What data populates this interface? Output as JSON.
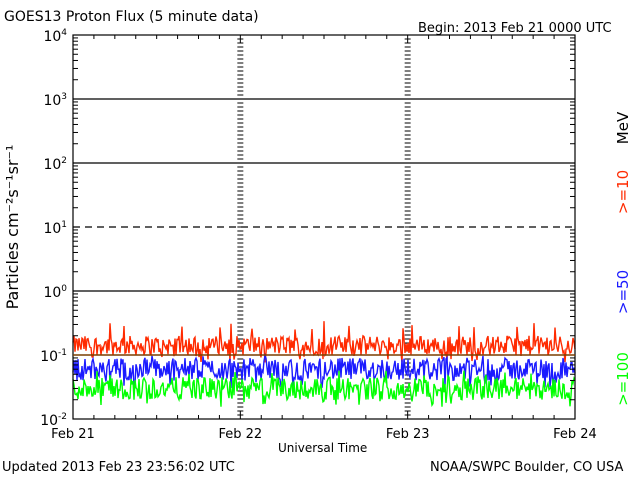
{
  "header": {
    "title": "GOES13 Proton Flux (5 minute data)",
    "begin": "Begin: 2013 Feb 21 0000 UTC"
  },
  "footer": {
    "updated": "Updated 2013 Feb 23 23:56:02 UTC",
    "credit": "NOAA/SWPC Boulder, CO USA"
  },
  "chart_data": {
    "type": "line",
    "title": "GOES13 Proton Flux (5 minute data)",
    "xlabel": "Universal Time",
    "ylabel": "Particles cm⁻²s⁻¹sr⁻¹",
    "y_scale": "log",
    "ylim": [
      0.01,
      10000
    ],
    "y_ticks": [
      {
        "value": 0.01,
        "base": "10",
        "exp": "-2"
      },
      {
        "value": 0.1,
        "base": "10",
        "exp": "-1"
      },
      {
        "value": 1,
        "base": "10",
        "exp": "0"
      },
      {
        "value": 10,
        "base": "10",
        "exp": "1"
      },
      {
        "value": 100,
        "base": "10",
        "exp": "2"
      },
      {
        "value": 1000,
        "base": "10",
        "exp": "3"
      },
      {
        "value": 10000,
        "base": "10",
        "exp": "4"
      }
    ],
    "x_ticks": [
      "Feb 21",
      "Feb 22",
      "Feb 23",
      "Feb 24"
    ],
    "xlim": [
      "2013-02-21 00:00",
      "2013-02-24 00:00"
    ],
    "threshold_lines": [
      {
        "value": 10,
        "style": "dashed"
      },
      {
        "value": 0.1,
        "style": "solid",
        "color": "#7a3f00"
      }
    ],
    "series": [
      {
        "name": ">=10",
        "color": "#ff2a00",
        "typical_range": [
          0.1,
          0.2
        ],
        "peak": 0.35
      },
      {
        "name": ">=50",
        "color": "#1a1aff",
        "typical_range": [
          0.04,
          0.09
        ],
        "peak": 0.1
      },
      {
        "name": ">=100",
        "color": "#00ff00",
        "typical_range": [
          0.02,
          0.045
        ],
        "peak": 0.06
      }
    ],
    "unit_label": "MeV"
  }
}
